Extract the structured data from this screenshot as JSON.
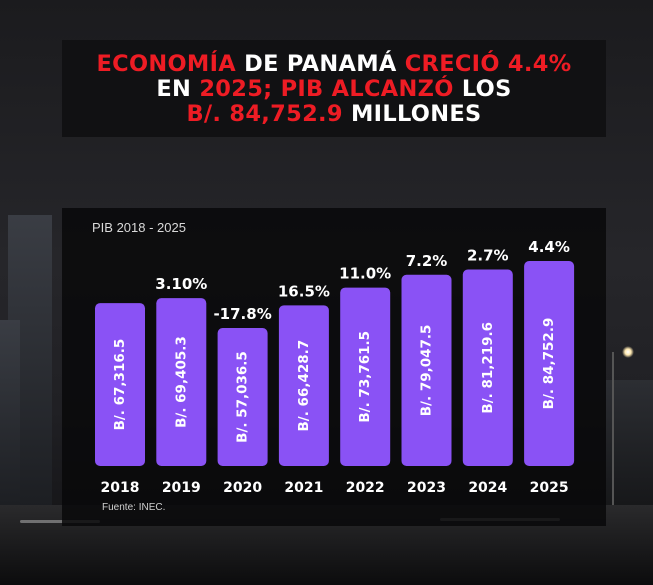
{
  "headline": {
    "line1": [
      {
        "text": "Economía",
        "color": "#ee1c24"
      },
      {
        "text": " de Panamá ",
        "color": "#ffffff"
      },
      {
        "text": "creció 4.4%",
        "color": "#ee1c24"
      }
    ],
    "line2": [
      {
        "text": "en ",
        "color": "#ffffff"
      },
      {
        "text": "2025; PIB alcanzó",
        "color": "#ee1c24"
      },
      {
        "text": " los",
        "color": "#ffffff"
      }
    ],
    "line3": [
      {
        "text": "B/. 84,752.9",
        "color": "#ee1c24"
      },
      {
        "text": " millones",
        "color": "#ffffff"
      }
    ]
  },
  "chart_data": {
    "type": "bar",
    "title": "PIB 2018 - 2025",
    "categories": [
      "2018",
      "2019",
      "2020",
      "2021",
      "2022",
      "2023",
      "2024",
      "2025"
    ],
    "values": [
      67316.5,
      69405.3,
      57036.5,
      66428.7,
      73761.5,
      79047.5,
      81219.6,
      84752.9
    ],
    "value_labels": [
      "B/. 67,316.5",
      "B/. 69,405.3",
      "B/. 57,036.5",
      "B/. 66,428.7",
      "B/. 73,761.5",
      "B/. 79,047.5",
      "B/. 81,219.6",
      "B/. 84,752.9"
    ],
    "growth_labels": [
      "",
      "3.10%",
      "-17.8%",
      "16.5%",
      "11.0%",
      "7.2%",
      "2.7%",
      "4.4%"
    ],
    "bar_color": "#8a52f5",
    "grid": false
  },
  "source": "Fuente: INEC."
}
